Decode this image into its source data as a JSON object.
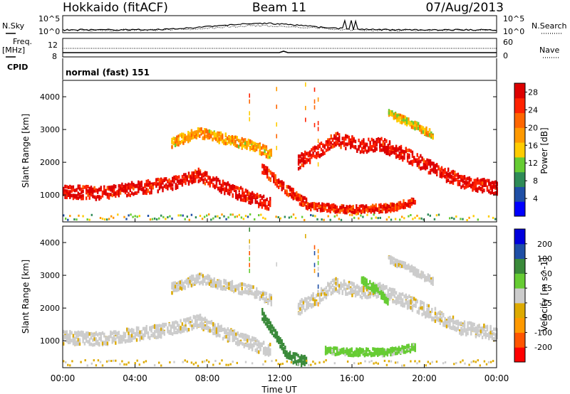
{
  "header": {
    "station": "Hokkaido (fitACF)",
    "beam": "Beam 11",
    "date": "07/Aug/2013"
  },
  "noise_panel": {
    "left_label": "N.Sky",
    "right_label": "N.Search",
    "left_ticks": [
      "10^5",
      "10^0"
    ],
    "right_ticks": [
      "10^5",
      "10^0"
    ]
  },
  "freq_panel": {
    "left_label_1": "Freq.",
    "left_label_2": "[MHz]",
    "left_ticks": [
      "12",
      "8"
    ],
    "right_label": "Nave",
    "right_ticks": [
      "60",
      "0"
    ],
    "cpid_label": "CPID",
    "mode_text": "normal (fast) 151"
  },
  "colors": {
    "power": [
      "#0000ff",
      "#1f4fa6",
      "#2e8b57",
      "#66cc33",
      "#ffcc00",
      "#ff9900",
      "#ff6600",
      "#ff2200",
      "#dd0000"
    ],
    "velocity": [
      "#ff0000",
      "#ff5500",
      "#ff9900",
      "#ddaa00",
      "#cccccc",
      "#66cc33",
      "#3a8a3a",
      "#1f4fa6",
      "#0000dd"
    ]
  },
  "chart_data": [
    {
      "type": "heatmap",
      "title": "",
      "xlabel": "Time UT",
      "ylabel": "Slant Range [km]",
      "xlim": [
        "00:00",
        "24:00"
      ],
      "ylim": [
        180,
        4500
      ],
      "x_ticks": [
        "00:00",
        "04:00",
        "08:00",
        "12:00",
        "16:00",
        "20:00",
        "00:00"
      ],
      "y_ticks": [
        1000,
        2000,
        3000,
        4000
      ],
      "colorbar": {
        "label": "Power [dB]",
        "ticks": [
          "4",
          "8",
          "12",
          "16",
          "20",
          "24",
          "28"
        ],
        "range": [
          0,
          30
        ]
      },
      "scatter_bands": [
        {
          "name": "main",
          "points": [
            [
              0,
              1100
            ],
            [
              2,
              1050
            ],
            [
              4,
              1200
            ],
            [
              6,
              1350
            ],
            [
              7.5,
              1600
            ],
            [
              9,
              1200
            ],
            [
              10.5,
              900
            ],
            [
              11.5,
              700
            ]
          ],
          "width": 380,
          "level": 28
        },
        {
          "name": "upper",
          "points": [
            [
              6,
              2600
            ],
            [
              7.5,
              2900
            ],
            [
              9,
              2700
            ],
            [
              10.5,
              2500
            ],
            [
              11.5,
              2250
            ]
          ],
          "width": 300,
          "level": 18
        },
        {
          "name": "morning-short",
          "points": [
            [
              11,
              1800
            ],
            [
              12.5,
              1100
            ],
            [
              13.5,
              700
            ]
          ],
          "width": 300,
          "level": 26
        },
        {
          "name": "afternoon",
          "points": [
            [
              13,
              2000
            ],
            [
              14,
              2300
            ],
            [
              15,
              2700
            ],
            [
              16.5,
              2500
            ],
            [
              17.5,
              2550
            ],
            [
              19,
              2200
            ],
            [
              20.5,
              1800
            ],
            [
              22,
              1400
            ],
            [
              24,
              1200
            ]
          ],
          "width": 400,
          "level": 28
        },
        {
          "name": "near-range",
          "points": [
            [
              13.5,
              650
            ],
            [
              16,
              550
            ],
            [
              18,
              600
            ],
            [
              19.5,
              800
            ]
          ],
          "width": 220,
          "level": 26
        },
        {
          "name": "far",
          "points": [
            [
              18,
              3500
            ],
            [
              19.5,
              3100
            ],
            [
              20.5,
              2800
            ]
          ],
          "width": 220,
          "level": 16
        }
      ]
    },
    {
      "type": "heatmap",
      "title": "",
      "xlabel": "Time UT",
      "ylabel": "Slant Range [km]",
      "xlim": [
        "00:00",
        "24:00"
      ],
      "ylim": [
        180,
        4500
      ],
      "x_ticks": [
        "00:00",
        "04:00",
        "08:00",
        "12:00",
        "16:00",
        "20:00",
        "00:00"
      ],
      "y_ticks": [
        1000,
        2000,
        3000,
        4000
      ],
      "colorbar": {
        "label": "Velocity [m s^-1]",
        "ticks": [
          "200",
          "100",
          "50",
          "15",
          "-15",
          "-50",
          "-100",
          "-200"
        ],
        "range": [
          -250,
          250
        ]
      },
      "scatter_bands": [
        {
          "name": "main",
          "points": [
            [
              0,
              1100
            ],
            [
              2,
              1050
            ],
            [
              4,
              1200
            ],
            [
              6,
              1350
            ],
            [
              7.5,
              1600
            ],
            [
              9,
              1200
            ],
            [
              10.5,
              900
            ],
            [
              11.5,
              700
            ]
          ],
          "width": 380,
          "level": 0
        },
        {
          "name": "upper",
          "points": [
            [
              6,
              2600
            ],
            [
              7.5,
              2900
            ],
            [
              9,
              2700
            ],
            [
              10.5,
              2500
            ],
            [
              11.5,
              2250
            ]
          ],
          "width": 300,
          "level": 0
        },
        {
          "name": "morning-short",
          "points": [
            [
              11,
              1800
            ],
            [
              12.5,
              500
            ],
            [
              13.5,
              350
            ]
          ],
          "width": 300,
          "level": 120
        },
        {
          "name": "afternoon",
          "points": [
            [
              13,
              2000
            ],
            [
              14,
              2300
            ],
            [
              15,
              2700
            ],
            [
              16.5,
              2500
            ],
            [
              17.5,
              2550
            ],
            [
              19,
              2200
            ],
            [
              20.5,
              1800
            ],
            [
              22,
              1400
            ],
            [
              24,
              1200
            ]
          ],
          "width": 400,
          "level": 0
        },
        {
          "name": "near-range",
          "points": [
            [
              14.5,
              700
            ],
            [
              16,
              650
            ],
            [
              18,
              650
            ],
            [
              19.5,
              800
            ]
          ],
          "width": 200,
          "level": 40
        },
        {
          "name": "far",
          "points": [
            [
              18,
              3500
            ],
            [
              19.5,
              3100
            ],
            [
              20.5,
              2800
            ]
          ],
          "width": 220,
          "level": 0
        },
        {
          "name": "green-upper",
          "points": [
            [
              16.5,
              2850
            ],
            [
              17.5,
              2500
            ],
            [
              18,
              2100
            ]
          ],
          "width": 250,
          "level": 40
        }
      ]
    }
  ]
}
